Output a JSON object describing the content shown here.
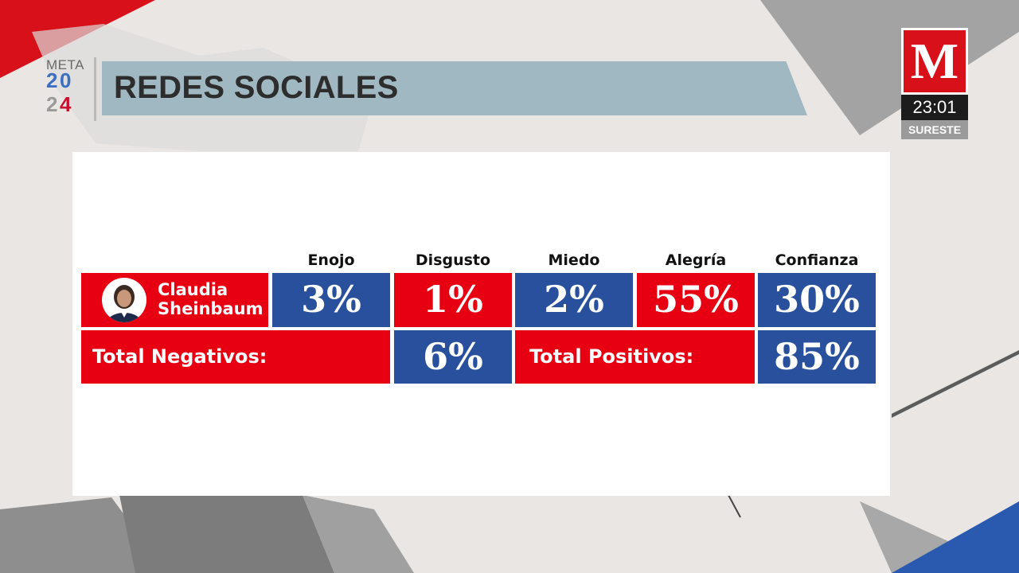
{
  "header": {
    "logo_meta": "META",
    "logo_digits": [
      "2",
      "0",
      "2",
      "4"
    ],
    "title": "REDES SOCIALES"
  },
  "channel": {
    "logo_letter": "M",
    "time": "23:01",
    "region": "SURESTE"
  },
  "table": {
    "columns": [
      "Enojo",
      "Disgusto",
      "Miedo",
      "Alegría",
      "Confianza"
    ],
    "candidate": {
      "name_line1": "Claudia",
      "name_line2": "Sheinbaum",
      "values": [
        "3%",
        "1%",
        "2%",
        "55%",
        "30%"
      ]
    },
    "totals": {
      "negative_label": "Total Negativos:",
      "negative_value": "6%",
      "positive_label": "Total Positivos:",
      "positive_value": "85%"
    }
  },
  "colors": {
    "red": "#e60012",
    "blue": "#28509d",
    "banner": "#9fb8c2"
  }
}
